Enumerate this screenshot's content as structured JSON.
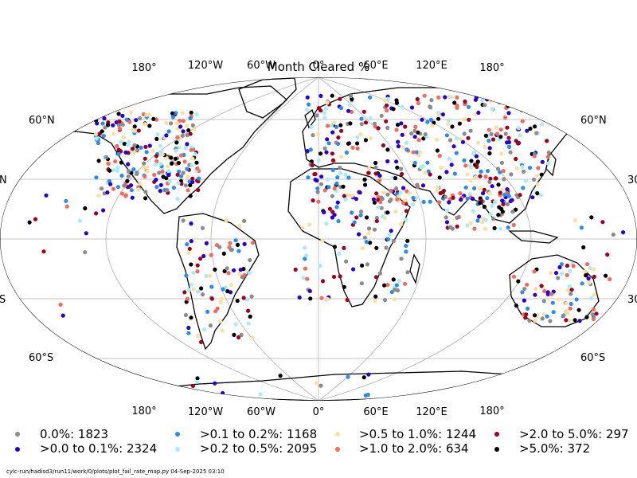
{
  "title": "Month Cleared %",
  "longitude_labels_top": [
    "180°",
    "120°W",
    "60°W",
    "0°",
    "60°E",
    "120°E",
    "180°"
  ],
  "longitude_labels_bottom": [
    "180°",
    "120°W",
    "60°W",
    "0°",
    "60°E",
    "120°E",
    "180°"
  ],
  "latitude_labels_left": [
    "60°N",
    "N",
    "S",
    "60°S"
  ],
  "latitude_labels_right": [
    "60°N",
    "30",
    "30",
    "60°S"
  ],
  "legend": [
    {
      "label": "0.0%: 1823",
      "color": "#8c8c8c"
    },
    {
      "label": ">0.0 to 0.1%: 2324",
      "color": "#2a00cc"
    },
    {
      "label": ">0.1 to 0.2%: 1168",
      "color": "#2b8cf0"
    },
    {
      "label": ">0.2 to 0.5%: 2095",
      "color": "#a8ecf7"
    },
    {
      "label": ">0.5 to 1.0%: 1244",
      "color": "#fde0a0"
    },
    {
      "label": ">1.0 to 2.0%: 634",
      "color": "#f26b5e"
    },
    {
      "label": ">2.0 to 5.0%: 297",
      "color": "#a0001f"
    },
    {
      "label": ">5.0%: 372",
      "color": "#000000"
    }
  ],
  "footer": "cylc-run/hadisd3/run11/work/0/plots/plot_fail_rate_map.py   04-Sep-2025 03:10"
}
